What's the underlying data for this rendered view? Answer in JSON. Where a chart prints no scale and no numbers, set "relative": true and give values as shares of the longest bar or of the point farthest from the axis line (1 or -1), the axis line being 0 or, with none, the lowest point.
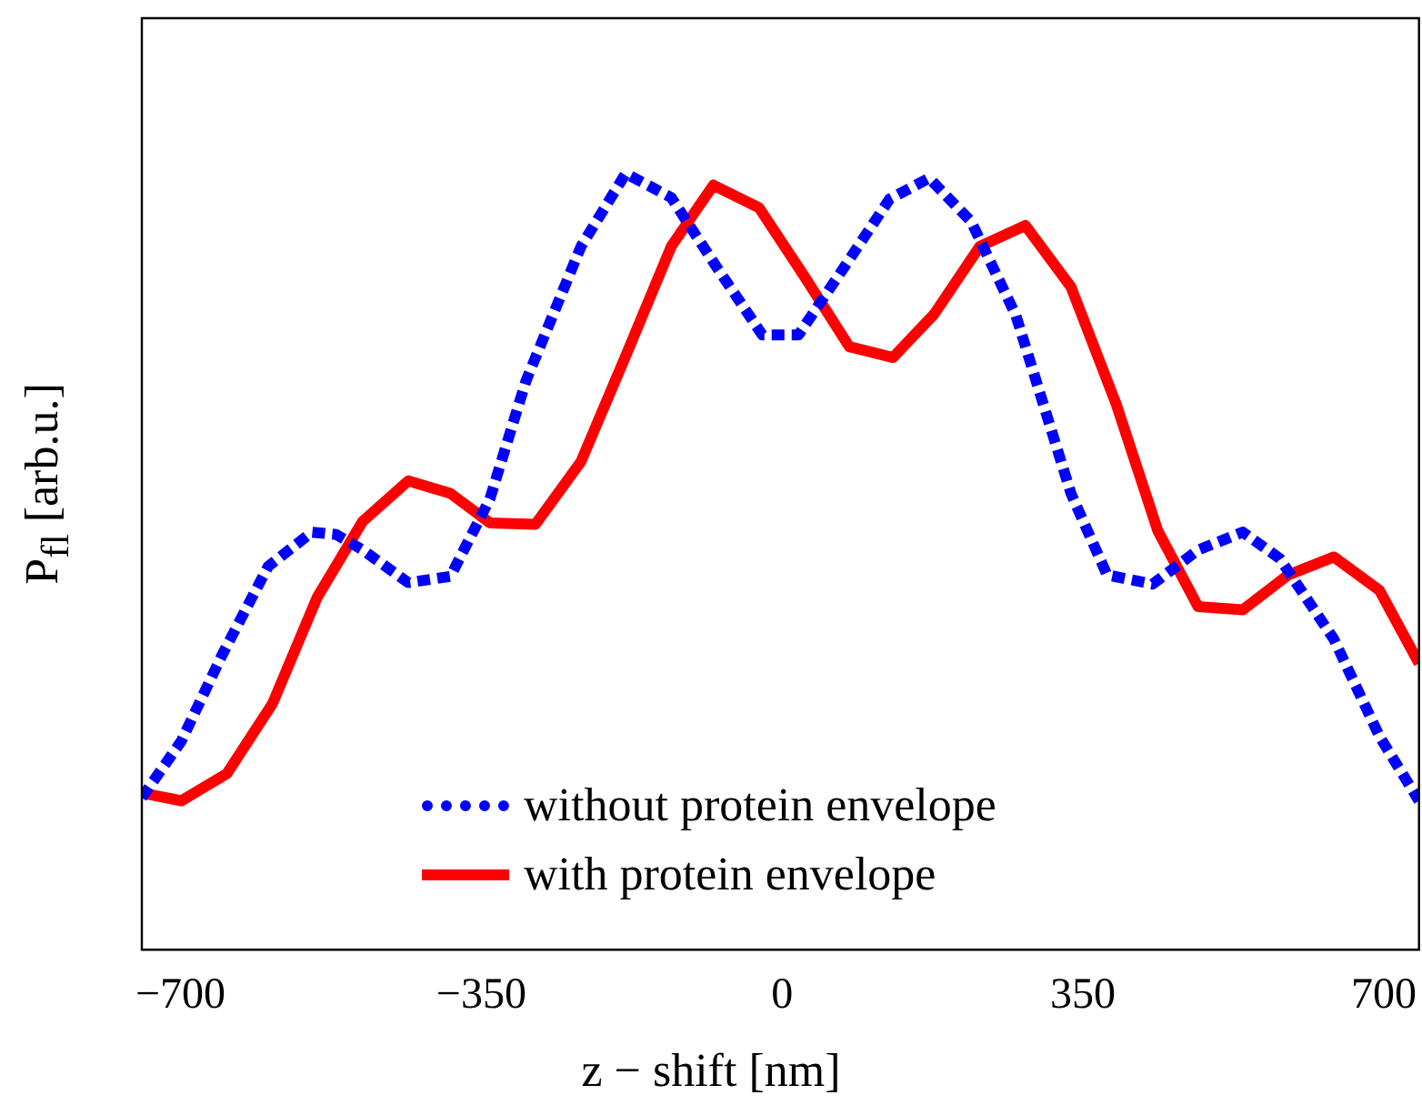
{
  "chart_data": {
    "type": "line",
    "relative": true,
    "xlabel": "z − shift [nm]",
    "ylabel": "P$_{fl}$ [arb.u.]",
    "xlim": [
      -745,
      741
    ],
    "xticks": [
      -700,
      -350,
      0,
      350,
      700
    ],
    "legend": "bottom",
    "grid": false,
    "marker": "none",
    "series": [
      {
        "name": "without protein envelope",
        "color": "#0000ff",
        "line_style": "dotted",
        "x": [
          -745,
          -699,
          -652,
          -598,
          -547,
          -519,
          -488,
          -435,
          -386,
          -340,
          -298,
          -234,
          -182,
          -129,
          -76,
          -23,
          19,
          72,
          125,
          171,
          220,
          272,
          336,
          378,
          431,
          484,
          536,
          579,
          642,
          695,
          741
        ],
        "values": [
          0.196,
          0.269,
          0.379,
          0.494,
          0.538,
          0.535,
          0.515,
          0.473,
          0.481,
          0.581,
          0.733,
          0.906,
          1.0,
          0.969,
          0.879,
          0.792,
          0.792,
          0.879,
          0.967,
          0.994,
          0.938,
          0.817,
          0.588,
          0.483,
          0.471,
          0.515,
          0.538,
          0.504,
          0.4,
          0.275,
          0.192
        ]
      },
      {
        "name": "with protein envelope",
        "color": "#ff0000",
        "line_style": "solid",
        "x": [
          -745,
          -699,
          -646,
          -593,
          -541,
          -488,
          -435,
          -386,
          -340,
          -287,
          -234,
          -182,
          -129,
          -80,
          -27,
          25,
          78,
          129,
          177,
          230,
          283,
          336,
          389,
          437,
          484,
          536,
          589,
          642,
          695,
          741
        ],
        "values": [
          0.202,
          0.192,
          0.227,
          0.317,
          0.454,
          0.552,
          0.604,
          0.588,
          0.55,
          0.548,
          0.629,
          0.765,
          0.906,
          0.985,
          0.956,
          0.869,
          0.777,
          0.763,
          0.819,
          0.906,
          0.933,
          0.854,
          0.702,
          0.54,
          0.442,
          0.438,
          0.483,
          0.506,
          0.463,
          0.369
        ]
      }
    ]
  }
}
